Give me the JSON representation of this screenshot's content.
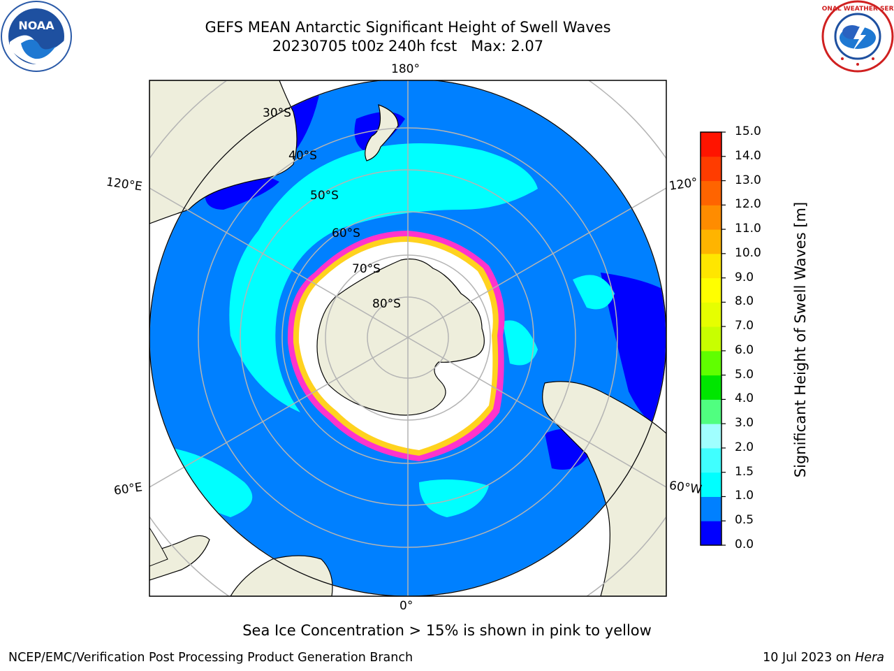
{
  "title": {
    "line1": "GEFS MEAN Antarctic Significant Height of Swell Waves",
    "line2": "20230705 t00z 240h fcst   Max: 2.07"
  },
  "logos": {
    "left": {
      "icon": "noaa-logo",
      "text": "NOAA"
    },
    "right": {
      "icon": "national-weather-service-logo",
      "text": "NATIONAL WEATHER SERVICE"
    }
  },
  "map": {
    "projection": "south-polar-stereographic",
    "longitude_labels": {
      "top": "180°",
      "bottom": "0°",
      "upper_left": "120°E",
      "upper_right": "120°",
      "lower_left": "60°E",
      "lower_right": "60°W"
    },
    "latitude_labels": [
      "30°S",
      "40°S",
      "50°S",
      "60°S",
      "70°S",
      "80°S"
    ],
    "colors": {
      "land": "#eeeedc",
      "open_ocean_low": "#0000ff",
      "ocean_main": "#0080ff",
      "cyan_band": "#00ffff",
      "sea_ice_pink": "#ff33cc",
      "sea_ice_yellow": "#ffd21e",
      "gridline": "#b4b4b4"
    }
  },
  "colorbar": {
    "label": "Significant Height of Swell Waves [m]",
    "ticks": [
      "15.0",
      "14.0",
      "13.0",
      "12.0",
      "11.0",
      "10.0",
      "9.0",
      "8.0",
      "7.0",
      "6.0",
      "5.0",
      "4.0",
      "3.0",
      "2.0",
      "1.5",
      "1.0",
      "0.5",
      "0.0"
    ],
    "colors": [
      "#0000ff",
      "#0080ff",
      "#00ffff",
      "#40ffff",
      "#a0ffff",
      "#50ff80",
      "#00e600",
      "#60ff00",
      "#c8ff00",
      "#e6ff00",
      "#ffff00",
      "#ffe600",
      "#ffb400",
      "#ff8c00",
      "#ff6400",
      "#ff3c00",
      "#ff1400"
    ]
  },
  "caption": "Sea Ice Concentration > 15% is shown in pink to yellow",
  "footer": {
    "left": "NCEP/EMC/Verification Post Processing Product Generation Branch",
    "right_date": "10 Jul 2023 on ",
    "right_host": "Hera"
  }
}
